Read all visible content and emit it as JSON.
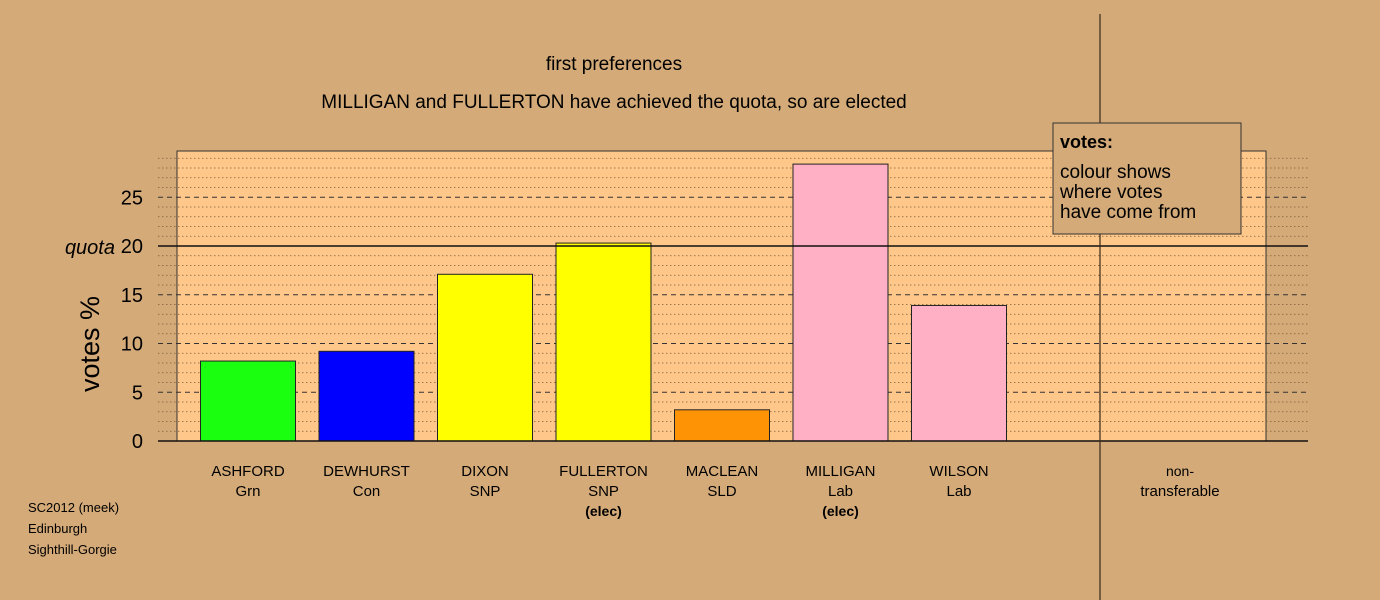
{
  "chart_data": {
    "type": "bar",
    "title": "first preferences",
    "subtitle": "MILLIGAN and FULLERTON have achieved the quota, so are elected",
    "ylabel": "votes %",
    "ylim": [
      0,
      30
    ],
    "yticks": [
      0,
      5,
      10,
      15,
      20,
      25
    ],
    "quota": 20,
    "quota_label": "quota",
    "grid": true,
    "categories": [
      {
        "name": "ASHFORD",
        "party": "Grn",
        "note": "",
        "value": 8.2,
        "color": "#19ff0f"
      },
      {
        "name": "DEWHURST",
        "party": "Con",
        "note": "",
        "value": 9.2,
        "color": "#0000ff"
      },
      {
        "name": "DIXON",
        "party": "SNP",
        "note": "",
        "value": 17.1,
        "color": "#ffff00"
      },
      {
        "name": "FULLERTON",
        "party": "SNP",
        "note": "(elec)",
        "value": 20.3,
        "color": "#ffff00"
      },
      {
        "name": "MACLEAN",
        "party": "SLD",
        "note": "",
        "value": 3.2,
        "color": "#ff9306"
      },
      {
        "name": "MILLIGAN",
        "party": "Lab",
        "note": "(elec)",
        "value": 28.4,
        "color": "#ffb0c5"
      },
      {
        "name": "WILSON",
        "party": "Lab",
        "note": "",
        "value": 13.9,
        "color": "#ffb0c5"
      }
    ],
    "nontransferable": {
      "label_line1": "non-",
      "label_line2": "transferable",
      "value": 0
    },
    "legend": {
      "title": "votes:",
      "lines": [
        "colour shows",
        "where votes",
        "have come from"
      ],
      "placement": "top-right"
    }
  },
  "caption": {
    "line1": "SC2012 (meek)",
    "line2": "Edinburgh",
    "line3": "Sighthill-Gorgie"
  },
  "colors": {
    "background": "#d4aa78",
    "plot_area": "#ffc88a"
  }
}
